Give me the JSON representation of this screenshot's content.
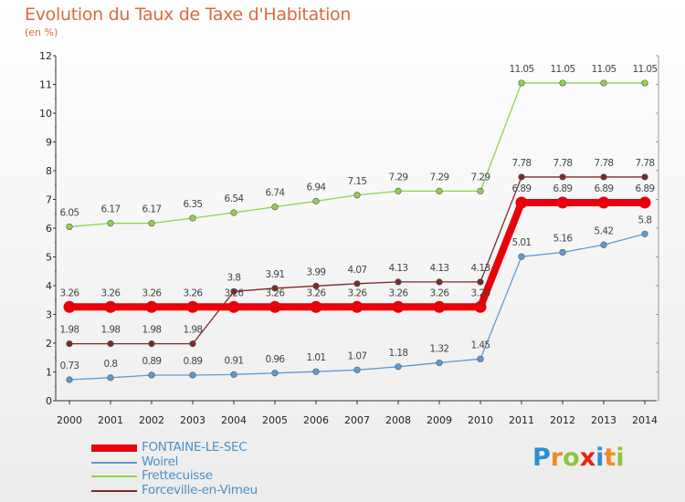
{
  "chart_data": {
    "type": "line",
    "title": "Evolution du Taux de Taxe d'Habitation",
    "subtitle": "(en %)",
    "x": [
      2000,
      2001,
      2002,
      2003,
      2004,
      2005,
      2006,
      2007,
      2008,
      2009,
      2010,
      2011,
      2012,
      2013,
      2014
    ],
    "xlabel": "",
    "ylabel": "",
    "ylim": [
      0,
      12
    ],
    "yticks": [
      0,
      1,
      2,
      3,
      4,
      5,
      6,
      7,
      8,
      9,
      10,
      11,
      12
    ],
    "grid": false,
    "legend": "bottom-left",
    "series": [
      {
        "name": "FONTAINE-LE-SEC",
        "color": "#e8000b",
        "values": [
          3.26,
          3.26,
          3.26,
          3.26,
          3.26,
          3.26,
          3.26,
          3.26,
          3.26,
          3.26,
          3.26,
          6.89,
          6.89,
          6.89,
          6.89
        ]
      },
      {
        "name": "Woirel",
        "color": "#5b9bd5",
        "values": [
          0.73,
          0.8,
          0.89,
          0.89,
          0.91,
          0.96,
          1.01,
          1.07,
          1.18,
          1.32,
          1.45,
          5.01,
          5.16,
          5.42,
          5.8
        ]
      },
      {
        "name": "Frettecuisse",
        "color": "#8fd14f",
        "values": [
          6.05,
          6.17,
          6.17,
          6.35,
          6.54,
          6.74,
          6.94,
          7.15,
          7.29,
          7.29,
          7.29,
          11.05,
          11.05,
          11.05,
          11.05
        ]
      },
      {
        "name": "Forceville-en-Vimeu",
        "color": "#7a2a2a",
        "values": [
          1.98,
          1.98,
          1.98,
          1.98,
          3.8,
          3.91,
          3.99,
          4.07,
          4.13,
          4.13,
          4.13,
          7.78,
          7.78,
          7.78,
          7.78
        ]
      }
    ]
  },
  "logo": {
    "letters": [
      "P",
      "r",
      "o",
      "x",
      "i",
      "t",
      "i"
    ],
    "colors": [
      "#2b8fd6",
      "#f08a24",
      "#8cc63f",
      "#e2231a",
      "#2b8fd6",
      "#f08a24",
      "#8cc63f"
    ]
  }
}
